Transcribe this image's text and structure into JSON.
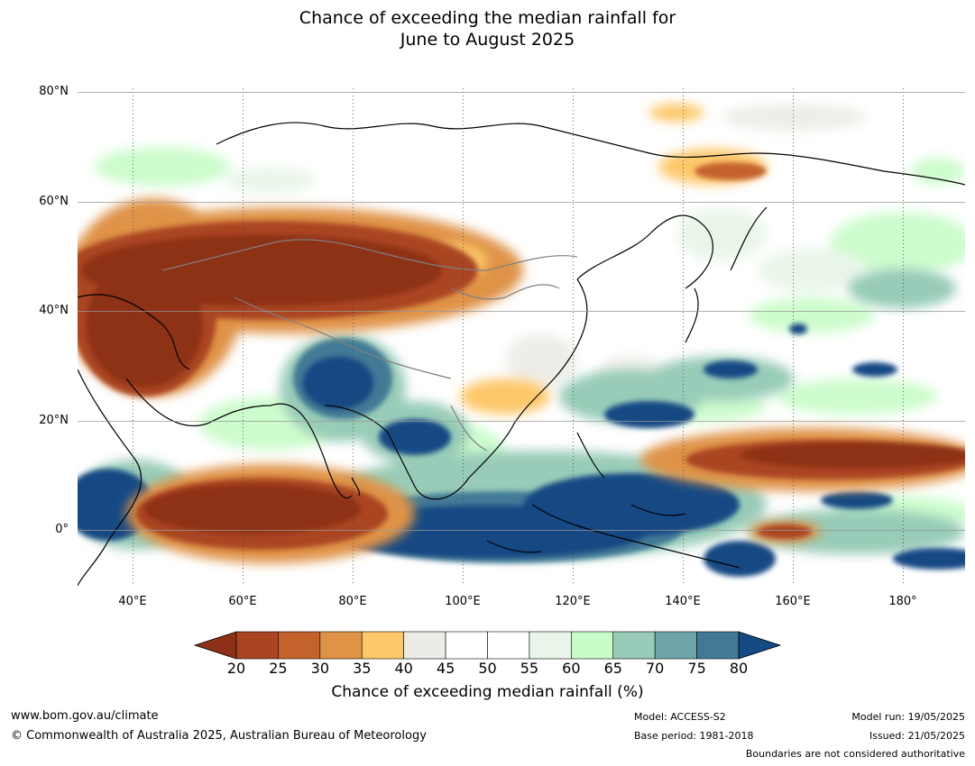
{
  "title": {
    "line1": "Chance of exceeding the median rainfall for",
    "line2": "June to August 2025"
  },
  "map": {
    "lon_range": [
      30,
      190
    ],
    "lat_range": [
      -10,
      80
    ],
    "lat_ticks": [
      "80°N",
      "60°N",
      "40°N",
      "20°N",
      "0°"
    ],
    "lon_ticks": [
      "40°E",
      "60°E",
      "80°E",
      "100°E",
      "120°E",
      "140°E",
      "160°E",
      "180°"
    ]
  },
  "colorbar": {
    "label": "Chance of exceeding median rainfall (%)",
    "ticks": [
      "20",
      "25",
      "30",
      "35",
      "40",
      "45",
      "50",
      "55",
      "60",
      "65",
      "70",
      "75",
      "80"
    ],
    "under_color": "#8e3018",
    "over_color": "#134a84",
    "colors": [
      "#aa4524",
      "#c4622d",
      "#df9346",
      "#fdc86a",
      "#ecebe6",
      "#ffffff",
      "#ffffff",
      "#e8f5e8",
      "#c8fcc8",
      "#98ccb8",
      "#6ea5a8",
      "#427a96"
    ]
  },
  "footer": {
    "website": "www.bom.gov.au/climate",
    "copyright": "© Commonwealth of Australia 2025, Australian Bureau of Meteorology",
    "model": "Model: ACCESS-S2",
    "base_period": "Base period: 1981-2018",
    "model_run": "Model run: 19/05/2025",
    "issued": "Issued: 21/05/2025",
    "disclaimer": "Boundaries are not considered authoritative"
  }
}
